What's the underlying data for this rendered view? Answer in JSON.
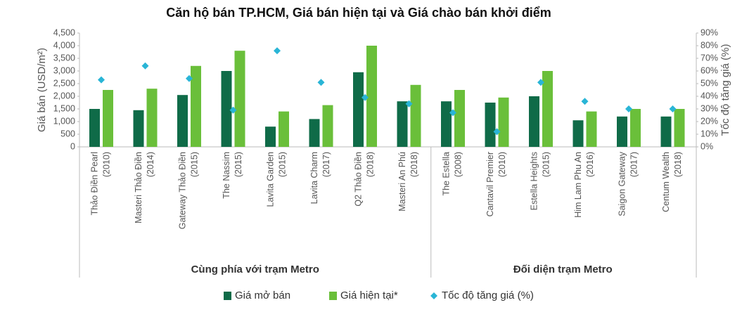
{
  "chart_data": {
    "type": "bar",
    "title": "Căn hộ bán TP.HCM, Giá bán hiện tại và Giá chào bán khởi điểm",
    "y_label": "Giá bán (USD/m²)",
    "y2_label": "Tốc độ tăng giá (%)",
    "groups": [
      {
        "name": "Cùng phía với trạm Metro",
        "categories": [
          [
            "Thảo Điền Pearl",
            "(2010)"
          ],
          [
            "Masteri Thảo Điền",
            "(2014)"
          ],
          [
            "Gateway Thảo Điền",
            "(2015)"
          ],
          [
            "The Nassim",
            "(2015)"
          ],
          [
            "Lavita Garden",
            "(2015)"
          ],
          [
            "Lavita Charm",
            "(2017)"
          ],
          [
            "Q2 Thảo Điền",
            "(2018)"
          ],
          [
            "Masteri An Phú",
            "(2018)"
          ]
        ]
      },
      {
        "name": "Đối diện trạm Metro",
        "categories": [
          [
            "The Estella",
            "(2008)"
          ],
          [
            "Cantavil Premier",
            "(2010)"
          ],
          [
            "Estella Heights",
            "(2015)"
          ],
          [
            "Him Lam Phu An",
            "(2016)"
          ],
          [
            "Saigon Gateway",
            "(2017)"
          ],
          [
            "Centum Wealth",
            "(2018)"
          ]
        ]
      }
    ],
    "series": [
      {
        "name": "Giá mở bán",
        "type": "bar",
        "color": "#0f6b48",
        "values": [
          1500,
          1450,
          2050,
          3000,
          800,
          1100,
          2950,
          1800,
          1800,
          1750,
          2000,
          1050,
          1200,
          1200
        ]
      },
      {
        "name": "Giá hiện tại*",
        "type": "bar",
        "color": "#6abf3a",
        "values": [
          2250,
          2300,
          3200,
          3800,
          1400,
          1650,
          4000,
          2450,
          2250,
          1950,
          3000,
          1400,
          1500,
          1500
        ]
      },
      {
        "name": "Tốc độ tăng giá (%)",
        "type": "scatter",
        "axis": "y2",
        "color": "#29b5d6",
        "values": [
          53,
          64,
          54,
          29,
          76,
          51,
          39,
          34,
          27,
          12,
          51,
          36,
          30,
          30
        ]
      }
    ],
    "ylim": [
      0,
      4500
    ],
    "yticks": [
      0,
      500,
      {
        "value": 1000,
        "label": "1,000"
      },
      {
        "value": 1500,
        "label": "1,500"
      },
      {
        "value": 2000,
        "label": "2,000"
      },
      {
        "value": 2500,
        "label": "2,500"
      },
      {
        "value": 3000,
        "label": "3,000"
      },
      {
        "value": 3500,
        "label": "3,500"
      },
      {
        "value": 4000,
        "label": "4,000"
      },
      {
        "value": 4500,
        "label": "4,500"
      }
    ],
    "y2lim": [
      0,
      90
    ],
    "y2ticks": [
      {
        "value": 0,
        "label": "0%"
      },
      {
        "value": 10,
        "label": "10%"
      },
      {
        "value": 20,
        "label": "20%"
      },
      {
        "value": 30,
        "label": "30%"
      },
      {
        "value": 40,
        "label": "40%"
      },
      {
        "value": 50,
        "label": "50%"
      },
      {
        "value": 60,
        "label": "60%"
      },
      {
        "value": 70,
        "label": "70%"
      },
      {
        "value": 80,
        "label": "80%"
      },
      {
        "value": 90,
        "label": "90%"
      }
    ],
    "grid": false
  }
}
